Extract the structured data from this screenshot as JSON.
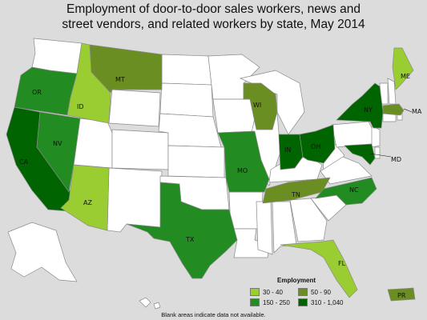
{
  "title_line1": "Employment of door-to-door sales workers, news and",
  "title_line2": "street vendors, and related workers by state, May 2014",
  "legend": {
    "title": "Employment",
    "items": [
      {
        "label": "30 - 40",
        "color": "#9acd32"
      },
      {
        "label": "50 - 90",
        "color": "#6b8e23"
      },
      {
        "label": "150 - 250",
        "color": "#228b22"
      },
      {
        "label": "310 - 1,040",
        "color": "#006400"
      }
    ]
  },
  "footnote": "Blank areas indicate data not available.",
  "state_labels": {
    "OR": "OR",
    "CA": "CA",
    "NV": "NV",
    "ID": "ID",
    "AZ": "AZ",
    "MT": "MT",
    "TX": "TX",
    "MO": "MO",
    "WI": "WI",
    "IN": "IN",
    "OH": "OH",
    "TN": "TN",
    "NC": "NC",
    "NY": "NY",
    "MA": "MA",
    "ME": "ME",
    "MD": "MD",
    "FL": "FL",
    "PR": "PR"
  },
  "state_classes": {
    "OR": "150 - 250",
    "CA": "310 - 1,040",
    "NV": "150 - 250",
    "ID": "30 - 40",
    "AZ": "30 - 40",
    "MT": "50 - 90",
    "TX": "150 - 250",
    "MO": "150 - 250",
    "WI": "50 - 90",
    "IN": "310 - 1,040",
    "OH": "310 - 1,040",
    "TN": "50 - 90",
    "NC": "150 - 250",
    "NY": "310 - 1,040",
    "MA": "50 - 90",
    "ME": "30 - 40",
    "MD": "310 - 1,040",
    "FL": "30 - 40",
    "PR": "50 - 90"
  }
}
